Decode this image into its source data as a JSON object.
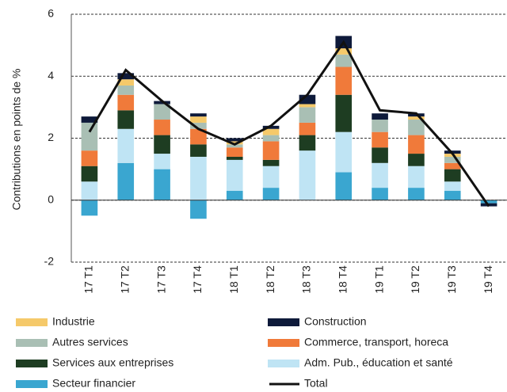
{
  "chart_data": {
    "type": "stacked-bar-line",
    "y_label": "Contributions en points de %",
    "categories": [
      "17 T1",
      "17 T2",
      "17 T3",
      "17 T4",
      "18 T1",
      "18 T2",
      "18 T3",
      "18 T4",
      "19 T1",
      "19 T2",
      "19 T3",
      "19 T4"
    ],
    "ylim": [
      -2,
      6
    ],
    "yticks": [
      -2,
      0,
      2,
      4,
      6
    ],
    "grid": true,
    "series": [
      {
        "name": "Secteur financier",
        "color": "#3aa6d0",
        "values": [
          -0.5,
          1.2,
          1.0,
          -0.6,
          0.3,
          0.4,
          0,
          0.9,
          0.4,
          0.4,
          0.3,
          -0.1
        ]
      },
      {
        "name": "Adm. Pub., éducation et santé",
        "color": "#bfe4f4",
        "values": [
          0.6,
          1.1,
          0.5,
          1.4,
          1.0,
          0.7,
          1.6,
          1.3,
          0.8,
          0.7,
          0.3,
          0
        ]
      },
      {
        "name": "Services aux entreprises",
        "color": "#1e3d22",
        "values": [
          0.5,
          0.6,
          0.6,
          0.4,
          0.1,
          0.2,
          0.5,
          1.2,
          0.5,
          0.4,
          0.4,
          0
        ]
      },
      {
        "name": "Commerce, transport, horeca",
        "color": "#f07a3a",
        "values": [
          0.5,
          0.5,
          0.5,
          0.5,
          0.3,
          0.6,
          0.4,
          0.9,
          0.5,
          0.6,
          0.2,
          0
        ]
      },
      {
        "name": "Autres services",
        "color": "#a9bfb4",
        "values": [
          0.9,
          0.3,
          0.5,
          0.2,
          0.1,
          0.2,
          0.5,
          0.4,
          0.4,
          0.5,
          0.2,
          0
        ]
      },
      {
        "name": "Industrie",
        "color": "#f5c96a",
        "values": [
          0,
          0.2,
          0,
          0.2,
          0.1,
          0.2,
          0.1,
          0.2,
          0,
          0.1,
          0.1,
          0
        ]
      },
      {
        "name": "Construction",
        "color": "#0e1a3a",
        "values": [
          0.2,
          0.2,
          0.1,
          0.1,
          0.1,
          0.1,
          0.3,
          0.4,
          0.2,
          0.1,
          0.1,
          -0.1
        ]
      }
    ],
    "line": {
      "name": "Total",
      "color": "#111111",
      "values": [
        2.2,
        4.2,
        3.2,
        2.3,
        1.8,
        2.4,
        3.4,
        5.1,
        2.9,
        2.8,
        1.5,
        -0.2
      ]
    },
    "legend_order": [
      5,
      6,
      4,
      3,
      2,
      1,
      0
    ]
  }
}
